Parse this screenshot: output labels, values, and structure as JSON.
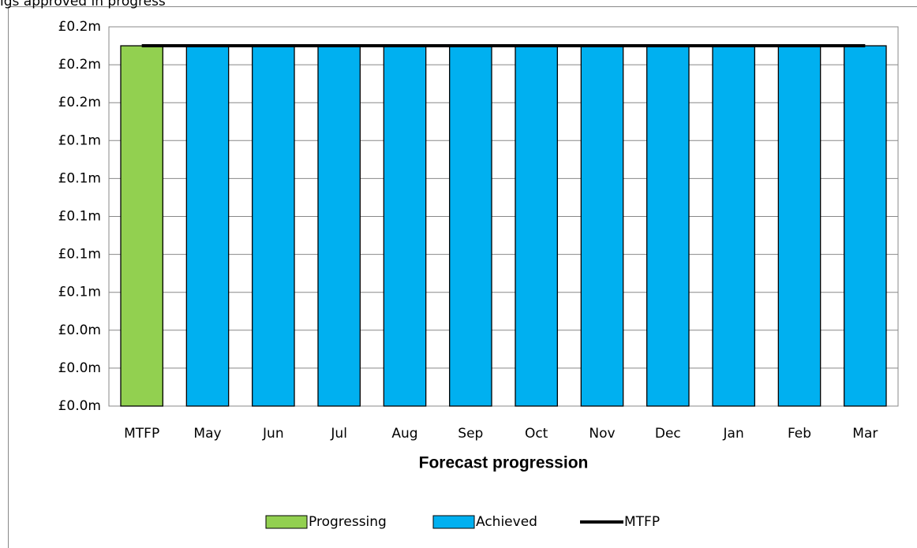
{
  "chart_data": {
    "type": "bar",
    "title": "igs approved in progress",
    "x_label": "Forecast progression",
    "categories": [
      "MTFP",
      "May",
      "Jun",
      "Jul",
      "Aug",
      "Sep",
      "Oct",
      "Nov",
      "Dec",
      "Jan",
      "Feb",
      "Mar"
    ],
    "series": [
      {
        "name": "Progressing",
        "color": "#92d050",
        "type": "bar",
        "values": [
          0.19,
          null,
          null,
          null,
          null,
          null,
          null,
          null,
          null,
          null,
          null,
          null
        ]
      },
      {
        "name": "Achieved",
        "color": "#00b0f0",
        "type": "bar",
        "values": [
          null,
          0.19,
          0.19,
          0.19,
          0.19,
          0.19,
          0.19,
          0.19,
          0.19,
          0.19,
          0.19,
          0.19
        ]
      },
      {
        "name": "MTFP",
        "color": "#000000",
        "type": "line",
        "values": [
          0.19,
          0.19,
          0.19,
          0.19,
          0.19,
          0.19,
          0.19,
          0.19,
          0.19,
          0.19,
          0.19,
          0.19
        ]
      }
    ],
    "ylim": [
      0,
      0.2
    ],
    "yticks": [
      {
        "value": 0,
        "label": "£0.0m"
      },
      {
        "value": 0.02,
        "label": "£0.0m"
      },
      {
        "value": 0.04,
        "label": "£0.0m"
      },
      {
        "value": 0.06,
        "label": "£0.1m"
      },
      {
        "value": 0.08,
        "label": "£0.1m"
      },
      {
        "value": 0.1,
        "label": "£0.1m"
      },
      {
        "value": 0.12,
        "label": "£0.1m"
      },
      {
        "value": 0.14,
        "label": "£0.1m"
      },
      {
        "value": 0.16,
        "label": "£0.2m"
      },
      {
        "value": 0.18,
        "label": "£0.2m"
      },
      {
        "value": 0.2,
        "label": "£0.2m"
      }
    ],
    "grid": true,
    "legend": "bottom"
  }
}
